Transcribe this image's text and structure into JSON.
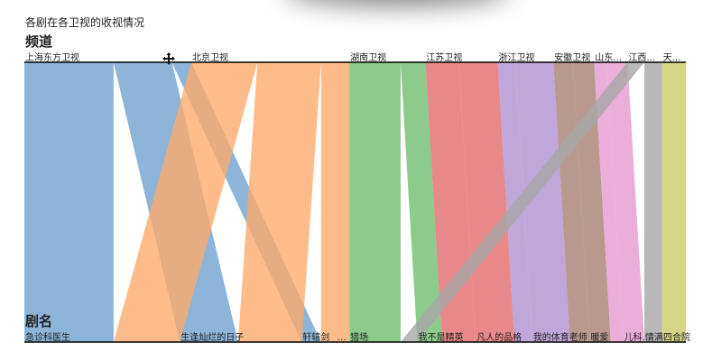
{
  "chart_data": {
    "type": "parallel-sets",
    "title": "各剧在各卫视的收视情况",
    "dimensions": [
      {
        "name": "频道",
        "categories": [
          "上海东方卫视",
          "北京卫视",
          "湖南卫视",
          "江苏卫视",
          "浙江卫视",
          "安徽卫视",
          "山东…",
          "江西…",
          "天…"
        ]
      },
      {
        "name": "剧名",
        "categories": [
          "急诊科医生",
          "生逢灿烂的日子",
          "轩辕剑",
          "…",
          "猎场",
          "我不是精英",
          "凡人的品格",
          "我的体育老师",
          "暖爱",
          "儿科…",
          "情满四合院"
        ]
      }
    ],
    "colors": {
      "上海东方卫视": "#6fa3cf",
      "北京卫视": "#fdab6d",
      "湖南卫视": "#6fbe6f",
      "江苏卫视": "#e36a6d",
      "浙江卫视": "#b091cf",
      "安徽卫视": "#a57f73",
      "山东…": "#e59ad0",
      "江西…": "#a6a6a6",
      "天…": "#cdca6a"
    },
    "flows": [
      {
        "channel": "上海东方卫视",
        "drama": "急诊科医生",
        "value": 101
      },
      {
        "channel": "上海东方卫视",
        "drama": "生逢灿烂的日子",
        "value": 66
      },
      {
        "channel": "上海东方卫视",
        "drama": "轩辕剑",
        "value": 22
      },
      {
        "channel": "北京卫视",
        "drama": "急诊科医生",
        "value": 75
      },
      {
        "channel": "北京卫视",
        "drama": "生逢灿烂的日子",
        "value": 72
      },
      {
        "channel": "北京卫视",
        "drama": "轩辕剑",
        "value": 17
      },
      {
        "channel": "北京卫视",
        "drama": "…",
        "value": 15
      },
      {
        "channel": "湖南卫视",
        "drama": "猎场",
        "value": 58
      },
      {
        "channel": "湖南卫视",
        "drama": "我不是精英",
        "value": 28
      },
      {
        "channel": "江苏卫视",
        "drama": "我不是精英",
        "value": 38
      },
      {
        "channel": "江苏卫视",
        "drama": "凡人的品格",
        "value": 44
      },
      {
        "channel": "浙江卫视",
        "drama": "凡人的品格",
        "value": 20
      },
      {
        "channel": "浙江卫视",
        "drama": "我的体育老师",
        "value": 43
      },
      {
        "channel": "安徽卫视",
        "drama": "我的体育老师",
        "value": 22
      },
      {
        "channel": "安徽卫视",
        "drama": "暖爱",
        "value": 24
      },
      {
        "channel": "山东…",
        "drama": "暖爱",
        "value": 14
      },
      {
        "channel": "山东…",
        "drama": "儿科…",
        "value": 24
      },
      {
        "channel": "江西…",
        "drama": "猎场",
        "value": 19
      },
      {
        "channel": "江西…",
        "drama": "情满四合院",
        "value": 20
      },
      {
        "channel": "天…",
        "drama": "情满四合院",
        "value": 27
      }
    ]
  }
}
